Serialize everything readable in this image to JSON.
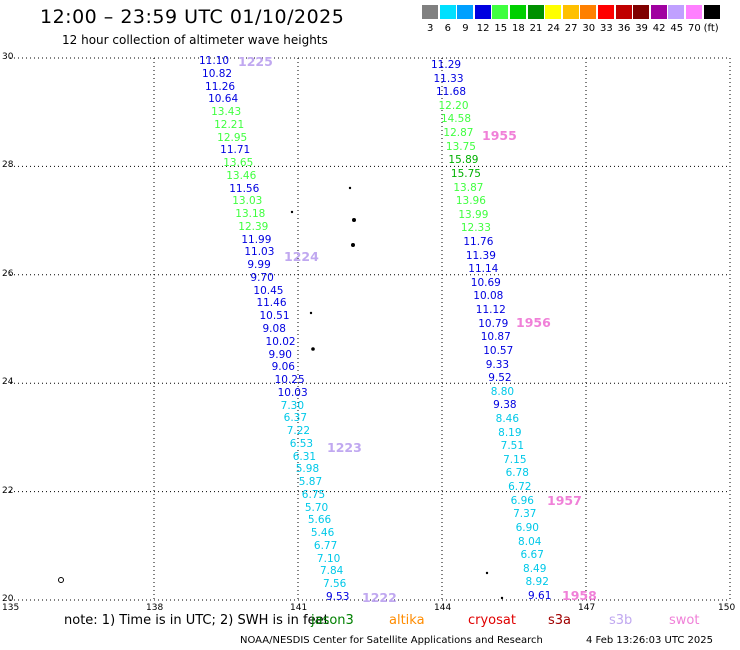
{
  "header": {
    "title": "12:00 – 23:59 UTC 01/10/2025",
    "subtitle": "12 hour collection of altimeter wave heights"
  },
  "legend": {
    "unit": "(ft)",
    "items": [
      {
        "label": "3",
        "color": "#808080"
      },
      {
        "label": "6",
        "color": "#00e0ff"
      },
      {
        "label": "9",
        "color": "#00a0ff"
      },
      {
        "label": "12",
        "color": "#0000e0"
      },
      {
        "label": "15",
        "color": "#40ff40"
      },
      {
        "label": "18",
        "color": "#00d000"
      },
      {
        "label": "21",
        "color": "#009000"
      },
      {
        "label": "24",
        "color": "#ffff00"
      },
      {
        "label": "27",
        "color": "#ffc000"
      },
      {
        "label": "30",
        "color": "#ff8000"
      },
      {
        "label": "33",
        "color": "#ff0000"
      },
      {
        "label": "36",
        "color": "#c00000"
      },
      {
        "label": "39",
        "color": "#800000"
      },
      {
        "label": "42",
        "color": "#a000a0"
      },
      {
        "label": "45",
        "color": "#c0a0ff"
      },
      {
        "label": "70",
        "color": "#ff80ff"
      },
      {
        "label": "",
        "color": "#000000"
      }
    ]
  },
  "map": {
    "lat_labels": [
      "30",
      "28",
      "26",
      "24",
      "22",
      "20"
    ],
    "lon_labels": [
      "135",
      "138",
      "141",
      "144",
      "147",
      "150"
    ],
    "lats": [
      30,
      28,
      26,
      24,
      22,
      20
    ],
    "lons": [
      135,
      138,
      141,
      144,
      147,
      150
    ]
  },
  "tracks": [
    {
      "id": "t1",
      "obs": [
        {
          "v": "11.10",
          "c": "#0000e0"
        },
        {
          "v": "10.82",
          "c": "#0000e0"
        },
        {
          "v": "11.26",
          "c": "#0000e0"
        },
        {
          "v": "10.64",
          "c": "#0000e0"
        },
        {
          "v": "13.43",
          "c": "#40ff40"
        },
        {
          "v": "12.21",
          "c": "#40ff40"
        },
        {
          "v": "12.95",
          "c": "#40ff40"
        },
        {
          "v": "11.71",
          "c": "#0000e0"
        },
        {
          "v": "13.65",
          "c": "#40ff40"
        },
        {
          "v": "13.46",
          "c": "#40ff40"
        },
        {
          "v": "11.56",
          "c": "#0000e0"
        },
        {
          "v": "13.03",
          "c": "#40ff40"
        },
        {
          "v": "13.18",
          "c": "#40ff40"
        },
        {
          "v": "12.39",
          "c": "#40ff40"
        },
        {
          "v": "11.99",
          "c": "#0000e0"
        },
        {
          "v": "11.03",
          "c": "#0000e0"
        },
        {
          "v": "9.99",
          "c": "#0000e0"
        },
        {
          "v": "9.70",
          "c": "#0000e0"
        },
        {
          "v": "10.45",
          "c": "#0000e0"
        },
        {
          "v": "11.46",
          "c": "#0000e0"
        },
        {
          "v": "10.51",
          "c": "#0000e0"
        },
        {
          "v": "9.08",
          "c": "#0000e0"
        },
        {
          "v": "10.02",
          "c": "#0000e0"
        },
        {
          "v": "9.90",
          "c": "#0000e0"
        },
        {
          "v": "9.06",
          "c": "#0000e0"
        },
        {
          "v": "10.25",
          "c": "#0000e0"
        },
        {
          "v": "10.03",
          "c": "#0000e0"
        },
        {
          "v": "7.30",
          "c": "#00c8e8"
        },
        {
          "v": "6.37",
          "c": "#00c8e8"
        },
        {
          "v": "7.22",
          "c": "#00c8e8"
        },
        {
          "v": "6.53",
          "c": "#00c8e8"
        },
        {
          "v": "6.31",
          "c": "#00c8e8"
        },
        {
          "v": "5.98",
          "c": "#00c8e8"
        },
        {
          "v": "5.87",
          "c": "#00c8e8"
        },
        {
          "v": "6.75",
          "c": "#00c8e8"
        },
        {
          "v": "5.70",
          "c": "#00c8e8"
        },
        {
          "v": "5.66",
          "c": "#00c8e8"
        },
        {
          "v": "5.46",
          "c": "#00c8e8"
        },
        {
          "v": "6.77",
          "c": "#00c8e8"
        },
        {
          "v": "7.10",
          "c": "#00c8e8"
        },
        {
          "v": "7.84",
          "c": "#00c8e8"
        },
        {
          "v": "7.56",
          "c": "#00c8e8"
        },
        {
          "v": "9.53",
          "c": "#0000e0"
        }
      ]
    },
    {
      "id": "t2",
      "obs": [
        {
          "v": "11.29",
          "c": "#0000e0"
        },
        {
          "v": "11.33",
          "c": "#0000e0"
        },
        {
          "v": "11.68",
          "c": "#0000e0"
        },
        {
          "v": "12.20",
          "c": "#40ff40"
        },
        {
          "v": "14.58",
          "c": "#40ff40"
        },
        {
          "v": "12.87",
          "c": "#40ff40"
        },
        {
          "v": "13.75",
          "c": "#40ff40"
        },
        {
          "v": "15.89",
          "c": "#00b000"
        },
        {
          "v": "15.75",
          "c": "#00b000"
        },
        {
          "v": "13.87",
          "c": "#40ff40"
        },
        {
          "v": "13.96",
          "c": "#40ff40"
        },
        {
          "v": "13.99",
          "c": "#40ff40"
        },
        {
          "v": "12.33",
          "c": "#40ff40"
        },
        {
          "v": "11.76",
          "c": "#0000e0"
        },
        {
          "v": "11.39",
          "c": "#0000e0"
        },
        {
          "v": "11.14",
          "c": "#0000e0"
        },
        {
          "v": "10.69",
          "c": "#0000e0"
        },
        {
          "v": "10.08",
          "c": "#0000e0"
        },
        {
          "v": "11.12",
          "c": "#0000e0"
        },
        {
          "v": "10.79",
          "c": "#0000e0"
        },
        {
          "v": "10.87",
          "c": "#0000e0"
        },
        {
          "v": "10.57",
          "c": "#0000e0"
        },
        {
          "v": "9.33",
          "c": "#0000e0"
        },
        {
          "v": "9.52",
          "c": "#0000e0"
        },
        {
          "v": "8.80",
          "c": "#00c8e8"
        },
        {
          "v": "9.38",
          "c": "#0000e0"
        },
        {
          "v": "8.46",
          "c": "#00c8e8"
        },
        {
          "v": "8.19",
          "c": "#00c8e8"
        },
        {
          "v": "7.51",
          "c": "#00c8e8"
        },
        {
          "v": "7.15",
          "c": "#00c8e8"
        },
        {
          "v": "6.78",
          "c": "#00c8e8"
        },
        {
          "v": "6.72",
          "c": "#00c8e8"
        },
        {
          "v": "6.96",
          "c": "#00c8e8"
        },
        {
          "v": "7.37",
          "c": "#00c8e8"
        },
        {
          "v": "6.90",
          "c": "#00c8e8"
        },
        {
          "v": "8.04",
          "c": "#00c8e8"
        },
        {
          "v": "6.67",
          "c": "#00c8e8"
        },
        {
          "v": "8.49",
          "c": "#00c8e8"
        },
        {
          "v": "8.92",
          "c": "#00c8e8"
        },
        {
          "v": "9.61",
          "c": "#0000e0"
        }
      ]
    }
  ],
  "pass_labels": [
    {
      "text": "1225",
      "color": "#c0a8f0"
    },
    {
      "text": "1224",
      "color": "#c0a8f0"
    },
    {
      "text": "1223",
      "color": "#c0a8f0"
    },
    {
      "text": "1222",
      "color": "#c0a8f0"
    },
    {
      "text": "1955",
      "color": "#f080d8"
    },
    {
      "text": "1956",
      "color": "#f080d8"
    },
    {
      "text": "1957",
      "color": "#f080d8"
    },
    {
      "text": "1958",
      "color": "#f080d8"
    }
  ],
  "footer": {
    "note": "note:  1) Time is in UTC;  2) SWH is in feet",
    "satellites": [
      {
        "name": "jason3",
        "color": "#008000"
      },
      {
        "name": "altika",
        "color": "#ff8c00"
      },
      {
        "name": "cryosat",
        "color": "#e00000"
      },
      {
        "name": "s3a",
        "color": "#a00000"
      },
      {
        "name": "s3b",
        "color": "#c0a8f0"
      },
      {
        "name": "swot",
        "color": "#f080d8"
      }
    ],
    "credit": "NOAA/NESDIS Center for Satellite Applications and Research",
    "timestamp": "4 Feb 13:26:03 UTC 2025"
  }
}
